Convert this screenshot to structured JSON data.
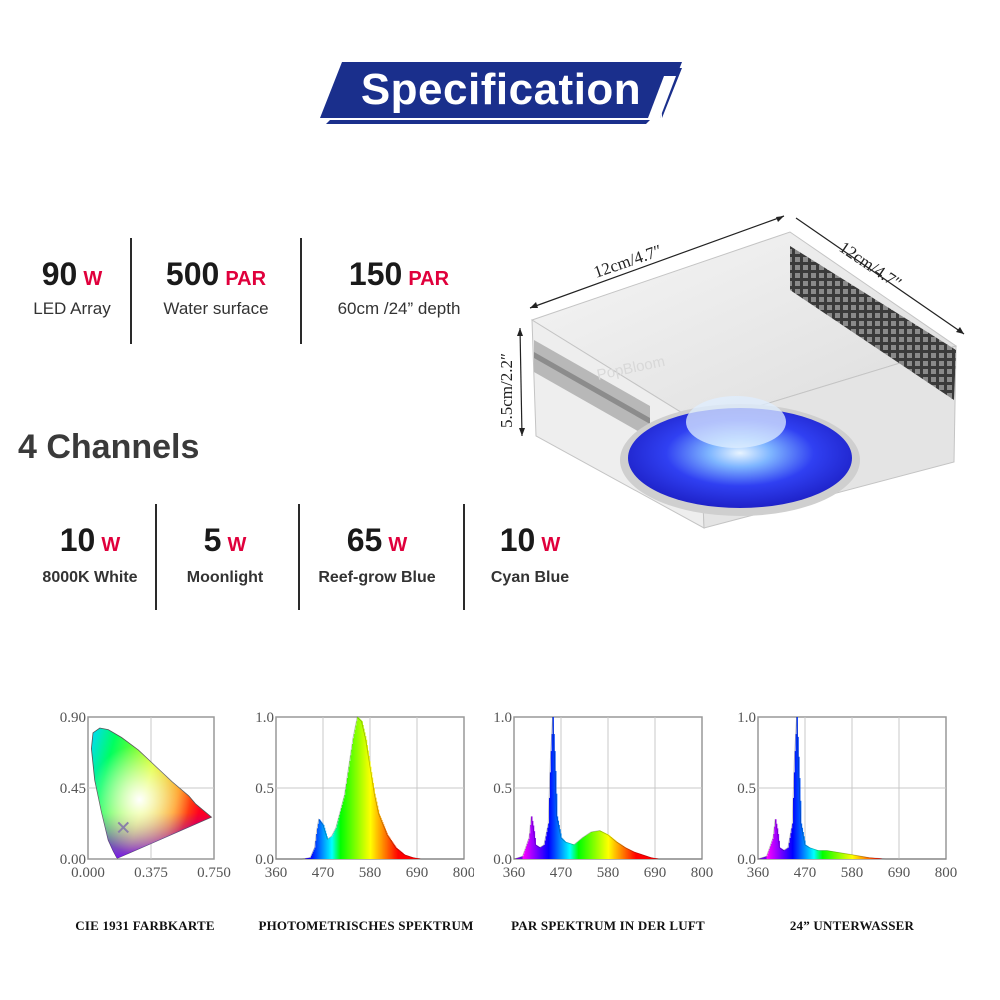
{
  "header": {
    "title": "Specification"
  },
  "specs": [
    {
      "value": "90",
      "unit": "W",
      "label": "LED Array"
    },
    {
      "value": "500",
      "unit": "PAR",
      "label": "Water surface"
    },
    {
      "value": "150",
      "unit": "PAR",
      "label": "60cm /24” depth"
    }
  ],
  "channels": {
    "title": "4 Channels",
    "items": [
      {
        "value": "10",
        "unit": "W",
        "label": "8000K White"
      },
      {
        "value": "5",
        "unit": "W",
        "label": "Moonlight"
      },
      {
        "value": "65",
        "unit": "W",
        "label": "Reef-grow Blue"
      },
      {
        "value": "10",
        "unit": "W",
        "label": "Cyan Blue"
      }
    ]
  },
  "product": {
    "brand": "PopBloom",
    "dim_width": "12cm/4.7″",
    "dim_depth": "12cm/4.7″",
    "dim_height": "5.5cm/2.2″"
  },
  "colors": {
    "banner": "#1a2f8c",
    "accent": "#e0003c",
    "lens": "#2f3df0"
  },
  "chart_data": [
    {
      "type": "area",
      "title": "CIE 1931 FARBKARTE",
      "x_ticks": [
        "0.000",
        "0.375",
        "0.750"
      ],
      "y_ticks": [
        "0.90",
        "0.45",
        "0.00"
      ],
      "xlim": [
        0,
        0.75
      ],
      "ylim": [
        0,
        0.9
      ],
      "marker": {
        "x": 0.21,
        "y": 0.2
      }
    },
    {
      "type": "area",
      "title": "PHOTOMETRISCHES SPEKTRUM",
      "x_ticks": [
        "360",
        "470",
        "580",
        "690",
        "800"
      ],
      "y_ticks": [
        "1.0",
        "0.5",
        "0.0"
      ],
      "xlim": [
        360,
        800
      ],
      "ylim": [
        0,
        1
      ],
      "x": [
        360,
        420,
        440,
        450,
        455,
        460,
        470,
        480,
        490,
        500,
        520,
        540,
        550,
        560,
        570,
        580,
        590,
        600,
        620,
        640,
        660,
        680,
        700,
        800
      ],
      "y": [
        0,
        0,
        0.01,
        0.08,
        0.2,
        0.28,
        0.24,
        0.14,
        0.16,
        0.22,
        0.45,
        0.85,
        1.0,
        0.97,
        0.84,
        0.65,
        0.46,
        0.32,
        0.17,
        0.08,
        0.03,
        0.01,
        0,
        0
      ]
    },
    {
      "type": "area",
      "title": "PAR SPEKTRUM IN DER LUFT",
      "x_ticks": [
        "360",
        "470",
        "580",
        "690",
        "800"
      ],
      "y_ticks": [
        "1.0",
        "0.5",
        "0.0"
      ],
      "xlim": [
        360,
        800
      ],
      "ylim": [
        0,
        1
      ],
      "x": [
        360,
        380,
        395,
        400,
        405,
        410,
        420,
        430,
        440,
        445,
        450,
        455,
        460,
        470,
        480,
        500,
        520,
        540,
        560,
        580,
        600,
        620,
        640,
        660,
        680,
        700,
        800
      ],
      "y": [
        0,
        0.02,
        0.15,
        0.3,
        0.22,
        0.1,
        0.08,
        0.1,
        0.25,
        0.7,
        1.0,
        0.7,
        0.3,
        0.15,
        0.12,
        0.1,
        0.15,
        0.19,
        0.2,
        0.17,
        0.12,
        0.08,
        0.05,
        0.03,
        0.01,
        0,
        0
      ]
    },
    {
      "type": "area",
      "title": "24”  UNTERWASSER",
      "x_ticks": [
        "360",
        "470",
        "580",
        "690",
        "800"
      ],
      "y_ticks": [
        "1.0",
        "0.5",
        "0.0"
      ],
      "xlim": [
        360,
        800
      ],
      "ylim": [
        0,
        1
      ],
      "x": [
        360,
        380,
        395,
        400,
        405,
        410,
        420,
        430,
        440,
        445,
        450,
        455,
        460,
        470,
        480,
        500,
        520,
        540,
        560,
        580,
        600,
        620,
        640,
        660,
        680,
        800
      ],
      "y": [
        0,
        0.02,
        0.15,
        0.28,
        0.2,
        0.08,
        0.06,
        0.08,
        0.25,
        0.7,
        1.0,
        0.65,
        0.25,
        0.1,
        0.08,
        0.06,
        0.06,
        0.05,
        0.04,
        0.03,
        0.02,
        0.01,
        0.005,
        0,
        0,
        0
      ]
    }
  ]
}
